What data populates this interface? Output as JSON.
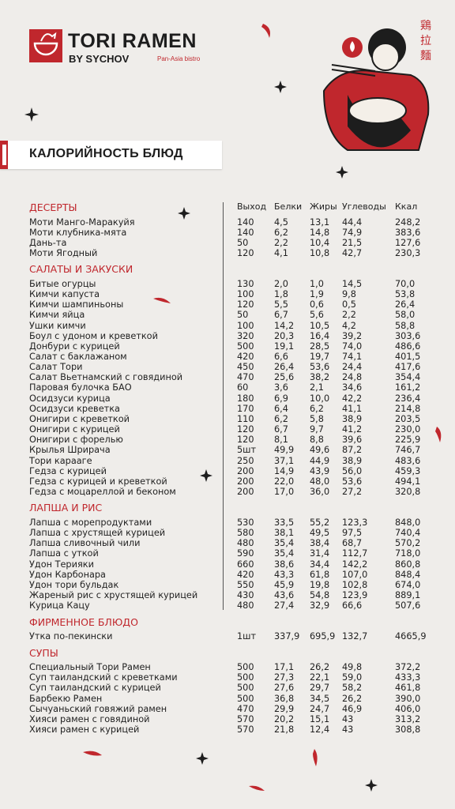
{
  "header": {
    "brand": "TORI RAMEN",
    "sub": "BY SYCHOV",
    "tagline": "Pan-Asia bistro",
    "hanzi": "鶏拉麵"
  },
  "title": "КАЛОРИЙНОСТЬ БЛЮД",
  "table": {
    "columns": [
      "Выход",
      "Белки",
      "Жиры",
      "Углеводы",
      "Ккал"
    ],
    "sections": [
      {
        "name": "ДЕСЕРТЫ",
        "rows": [
          [
            "Моти Манго-Маракуйя",
            "140",
            "4,5",
            "13,1",
            "44,4",
            "248,2"
          ],
          [
            "Моти клубника-мята",
            "140",
            "6,2",
            "14,8",
            "74,9",
            "383,6"
          ],
          [
            "Дань-та",
            "50",
            "2,2",
            "10,4",
            "21,5",
            "127,6"
          ],
          [
            "Моти Ягодный",
            "120",
            "4,1",
            "10,8",
            "42,7",
            "230,3"
          ]
        ]
      },
      {
        "name": "САЛАТЫ И ЗАКУСКИ",
        "rows": [
          [
            "Битые огурцы",
            "130",
            "2,0",
            "1,0",
            "14,5",
            "70,0"
          ],
          [
            "Кимчи капуста",
            "100",
            "1,8",
            "1,9",
            "9,8",
            "53,8"
          ],
          [
            "Кимчи шампиньоны",
            "120",
            "5,5",
            "0,6",
            "0,5",
            "26,4"
          ],
          [
            "Кимчи яйца",
            "50",
            "6,7",
            "5,6",
            "2,2",
            "58,0"
          ],
          [
            "Ушки кимчи",
            "100",
            "14,2",
            "10,5",
            "4,2",
            "58,8"
          ],
          [
            "Боул с удоном и креветкой",
            "320",
            "20,3",
            "16,4",
            "39,2",
            "303,6"
          ],
          [
            "Донбури с курицей",
            "500",
            "19,1",
            "28,5",
            "74,0",
            "486,6"
          ],
          [
            "Салат с баклажаном",
            "420",
            "6,6",
            "19,7",
            "74,1",
            "401,5"
          ],
          [
            "Салат Тори",
            "450",
            "26,4",
            "53,6",
            "24,4",
            "417,6"
          ],
          [
            "Салат Вьетнамский с говядиной",
            "470",
            "25,6",
            "38,2",
            "24,8",
            "354,4"
          ],
          [
            "Паровая булочка БАО",
            "60",
            "3,6",
            "2,1",
            "34,6",
            "161,2"
          ],
          [
            "Осидзуси курица",
            "180",
            "6,9",
            "10,0",
            "42,2",
            "236,4"
          ],
          [
            "Осидзуси креветка",
            "170",
            "6,4",
            "6,2",
            "41,1",
            "214,8"
          ],
          [
            "Онигири с креветкой",
            "110",
            "6,2",
            "5,8",
            "38,9",
            "203,5"
          ],
          [
            "Онигири с курицей",
            "120",
            "6,7",
            "9,7",
            "41,2",
            "230,0"
          ],
          [
            "Онигири с форелью",
            "120",
            "8,1",
            "8,8",
            "39,6",
            "225,9"
          ],
          [
            "Крылья Шрирача",
            "5шт",
            "49,9",
            "49,6",
            "87,2",
            "746,7"
          ],
          [
            "Тори карааге",
            "250",
            "37,1",
            "44,9",
            "38,9",
            "483,6"
          ],
          [
            "Гедза с курицей",
            "200",
            "14,9",
            "43,9",
            "56,0",
            "459,3"
          ],
          [
            "Гедза с курицей и креветкой",
            "200",
            "22,0",
            "48,0",
            "53,6",
            "494,1"
          ],
          [
            "Гедза с моцареллой и беконом",
            "200",
            "17,0",
            "36,0",
            "27,2",
            "320,8"
          ]
        ]
      },
      {
        "name": "ЛАПША И РИС",
        "rows": [
          [
            "Лапша с морепродуктами",
            "530",
            "33,5",
            "55,2",
            "123,3",
            "848,0"
          ],
          [
            "Лапша с хрустящей курицей",
            "580",
            "38,1",
            "49,5",
            "97,5",
            "740,4"
          ],
          [
            "Лапша сливочный чили",
            "480",
            "35,4",
            "38,4",
            "68,7",
            "570,2"
          ],
          [
            "Лапша с уткой",
            "590",
            "35,4",
            "31,4",
            "112,7",
            "718,0"
          ],
          [
            "Удон Терияки",
            "660",
            "38,6",
            "34,4",
            "142,2",
            "860,8"
          ],
          [
            "Удон Карбонара",
            "420",
            "43,3",
            "61,8",
            "107,0",
            "848,4"
          ],
          [
            "Удон тори бульдак",
            "550",
            "45,9",
            "19,8",
            "102,8",
            "674,0"
          ],
          [
            "Жареный рис с хрустящей курицей",
            "430",
            "43,6",
            "54,8",
            "123,9",
            "889,1"
          ],
          [
            "Курица Кацу",
            "480",
            "27,4",
            "32,9",
            "66,6",
            "507,6"
          ]
        ]
      },
      {
        "name": "ФИРМЕННОЕ БЛЮДО",
        "rows": [
          [
            "Утка по-пекински",
            "1шт",
            "337,9",
            "695,9",
            "132,7",
            "4665,9"
          ]
        ]
      },
      {
        "name": "СУПЫ",
        "rows": [
          [
            "Специальный Тори Рамен",
            "500",
            "17,1",
            "26,2",
            "49,8",
            "372,2"
          ],
          [
            "Суп таиландский с креветками",
            "500",
            "27,3",
            "22,1",
            "59,0",
            "433,3"
          ],
          [
            "Суп таиландский с курицей",
            "500",
            "27,6",
            "29,7",
            "58,2",
            "461,8"
          ],
          [
            "Барбекю Рамен",
            "500",
            "36,8",
            "34,5",
            "26,2",
            "390,0"
          ],
          [
            "Сычуаньский говяжий рамен",
            "470",
            "29,9",
            "24,7",
            "46,9",
            "406,0"
          ],
          [
            "Хияси рамен с говядиной",
            "570",
            "20,2",
            "15,1",
            "43",
            "313,2"
          ],
          [
            "Хияси рамен с курицей",
            "570",
            "21,8",
            "12,4",
            "43",
            "308,8"
          ]
        ]
      }
    ]
  }
}
